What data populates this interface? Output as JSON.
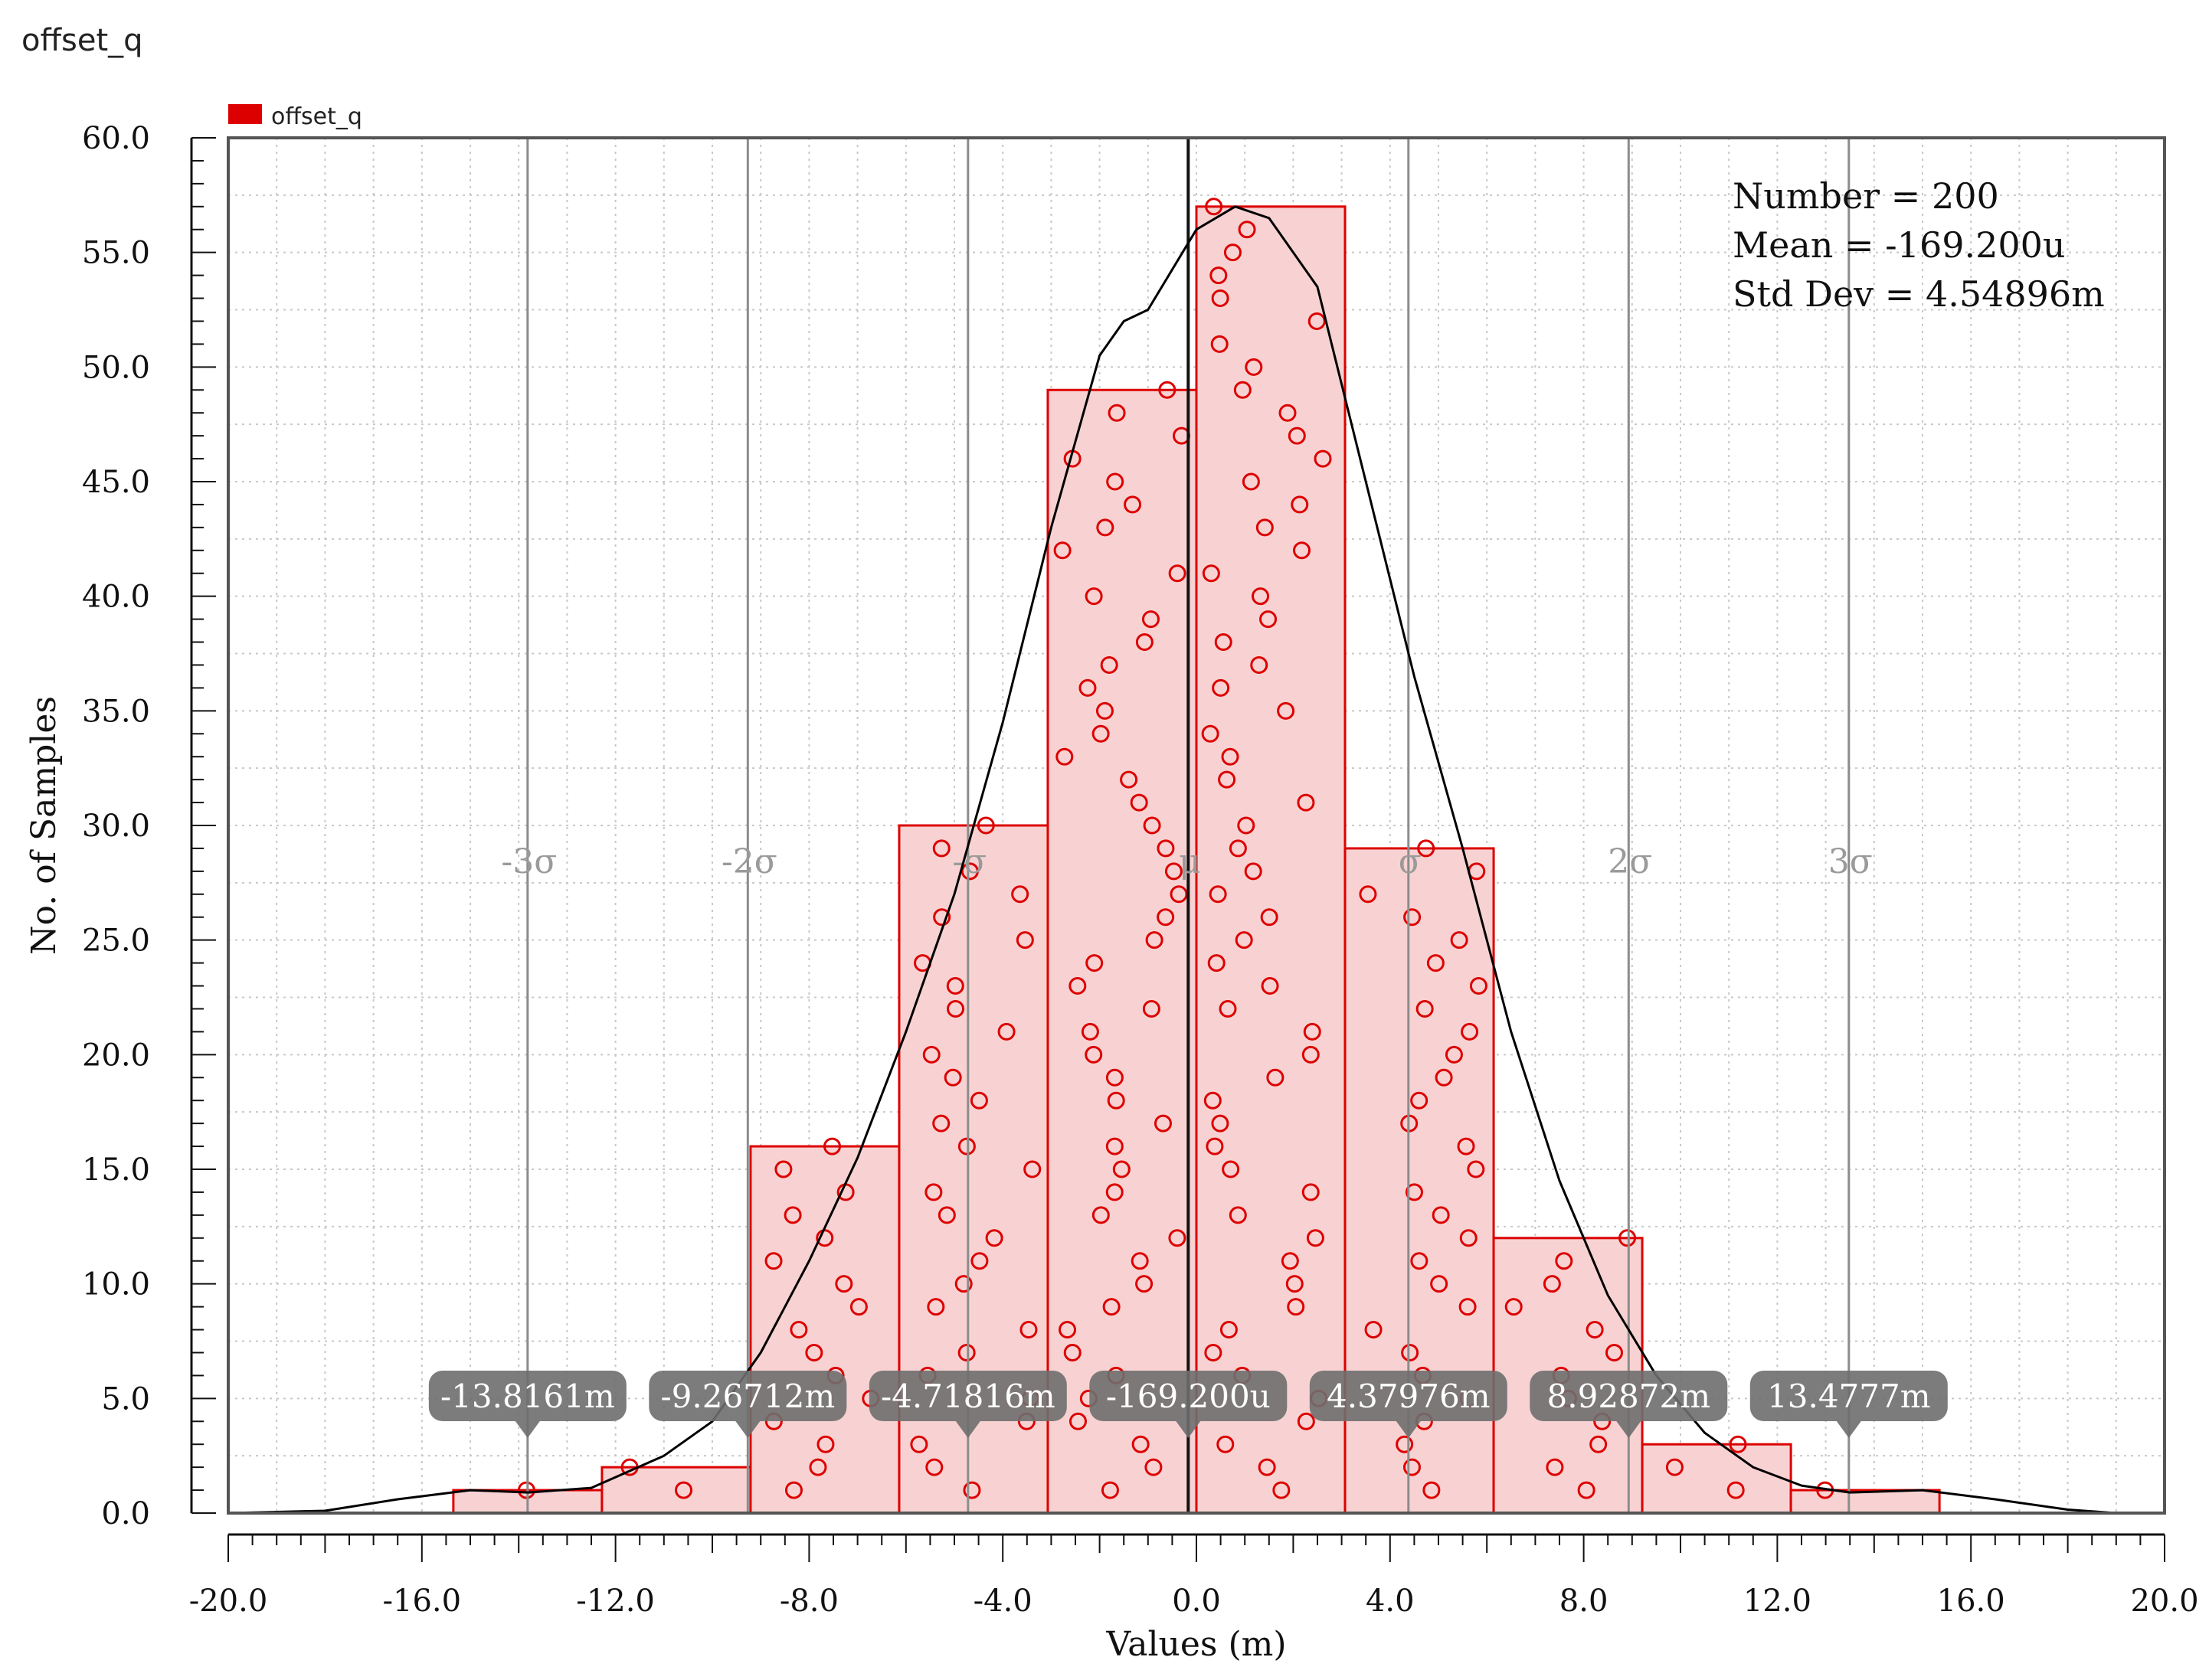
{
  "window": {
    "title": "offset_q"
  },
  "legend": {
    "label": "offset_q",
    "color": "#dd0000"
  },
  "stats": {
    "number": "Number = 200",
    "mean": "Mean = -169.200u",
    "std": "Std Dev = 4.54896m"
  },
  "colors": {
    "bar_fill": "#f8d2d2",
    "bar_stroke": "#dd0000",
    "curve": "#000000",
    "sigma_line": "#8c8c8c",
    "marker_bg": "#6e6e6e"
  },
  "chart_data": {
    "type": "bar",
    "title": "offset_q",
    "xlabel": "Values (m)",
    "ylabel": "No. of Samples",
    "xlim": [
      -20.0,
      20.0
    ],
    "ylim": [
      0.0,
      60.0
    ],
    "xticks": [
      "-20.0",
      "-16.0",
      "-12.0",
      "-8.0",
      "-4.0",
      "0.0",
      "4.0",
      "8.0",
      "12.0",
      "16.0",
      "20.0"
    ],
    "yticks": [
      "0.0",
      "5.0",
      "10.0",
      "15.0",
      "20.0",
      "25.0",
      "30.0",
      "35.0",
      "40.0",
      "45.0",
      "50.0",
      "55.0",
      "60.0"
    ],
    "grid": true,
    "legend_position": "top-left",
    "bins": [
      {
        "x0": -15.35,
        "x1": -12.28,
        "count": 1
      },
      {
        "x0": -12.28,
        "x1": -9.21,
        "count": 2
      },
      {
        "x0": -9.21,
        "x1": -6.14,
        "count": 16
      },
      {
        "x0": -6.14,
        "x1": -3.07,
        "count": 30
      },
      {
        "x0": -3.07,
        "x1": 0.0,
        "count": 49
      },
      {
        "x0": 0.0,
        "x1": 3.07,
        "count": 57
      },
      {
        "x0": 3.07,
        "x1": 6.14,
        "count": 29
      },
      {
        "x0": 6.14,
        "x1": 9.21,
        "count": 12
      },
      {
        "x0": 9.21,
        "x1": 12.28,
        "count": 3
      },
      {
        "x0": 12.28,
        "x1": 15.35,
        "count": 1
      }
    ],
    "sigma_lines": [
      {
        "x": -13.8161,
        "label": "-3σ",
        "marker": "-13.8161m"
      },
      {
        "x": -9.26712,
        "label": "-2σ",
        "marker": "-9.26712m"
      },
      {
        "x": -4.71816,
        "label": "-σ",
        "marker": "-4.71816m"
      },
      {
        "x": -0.1692,
        "label": "μ",
        "marker": "-169.200u"
      },
      {
        "x": 4.37976,
        "label": "σ",
        "marker": "4.37976m"
      },
      {
        "x": 8.92872,
        "label": "2σ",
        "marker": "8.92872m"
      },
      {
        "x": 13.4777,
        "label": "3σ",
        "marker": "13.4777m"
      }
    ],
    "density_curve": [
      [
        -20.0,
        0
      ],
      [
        -18.0,
        0.1
      ],
      [
        -16.5,
        0.6
      ],
      [
        -15.0,
        1.0
      ],
      [
        -13.8,
        0.9
      ],
      [
        -12.5,
        1.1
      ],
      [
        -11.0,
        2.5
      ],
      [
        -10.0,
        4.0
      ],
      [
        -9.0,
        7.0
      ],
      [
        -8.0,
        11.0
      ],
      [
        -7.0,
        15.5
      ],
      [
        -6.0,
        21.0
      ],
      [
        -5.0,
        27.0
      ],
      [
        -4.0,
        34.5
      ],
      [
        -3.0,
        43.0
      ],
      [
        -2.0,
        50.5
      ],
      [
        -1.5,
        52.0
      ],
      [
        -1.0,
        52.5
      ],
      [
        0.0,
        56.0
      ],
      [
        0.8,
        57.0
      ],
      [
        1.5,
        56.5
      ],
      [
        2.5,
        53.5
      ],
      [
        3.5,
        45.0
      ],
      [
        4.5,
        36.5
      ],
      [
        5.5,
        29.0
      ],
      [
        6.5,
        21.0
      ],
      [
        7.5,
        14.5
      ],
      [
        8.5,
        9.5
      ],
      [
        9.5,
        6.0
      ],
      [
        10.5,
        3.5
      ],
      [
        11.5,
        2.0
      ],
      [
        12.5,
        1.2
      ],
      [
        13.5,
        0.9
      ],
      [
        15.0,
        1.0
      ],
      [
        16.5,
        0.6
      ],
      [
        18.0,
        0.15
      ],
      [
        19.0,
        0
      ]
    ]
  }
}
